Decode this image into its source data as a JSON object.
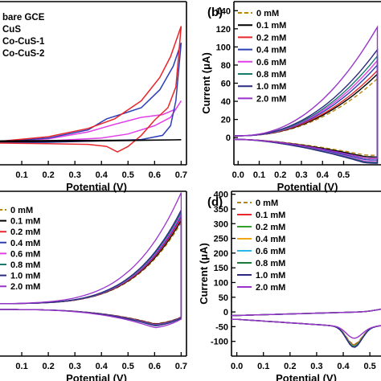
{
  "chart_data": [
    {
      "type": "line",
      "panel": "a",
      "xlabel": "Potential (V)",
      "ylabel": "",
      "x_ticks": [
        0.1,
        0.2,
        0.3,
        0.4,
        0.5,
        0.6,
        0.7
      ],
      "xlim": [
        0.0,
        0.72
      ],
      "ylim": [
        0,
        1
      ],
      "legend_position": "top-left",
      "series": [
        {
          "name": "bare GCE",
          "color": "#000000",
          "upper": [
            [
              -0.02,
              0.01
            ],
            [
              0.2,
              0.012
            ],
            [
              0.4,
              0.014
            ],
            [
              0.6,
              0.016
            ],
            [
              0.7,
              0.018
            ]
          ],
          "lower": [
            [
              0.7,
              0.018
            ],
            [
              0.5,
              0.012
            ],
            [
              0.3,
              0.008
            ],
            [
              0.1,
              0.005
            ],
            [
              -0.02,
              0.004
            ]
          ]
        },
        {
          "name": "CuS",
          "color": "#e8262b",
          "upper": [
            [
              -0.02,
              0.0
            ],
            [
              0.2,
              0.04
            ],
            [
              0.35,
              0.1
            ],
            [
              0.45,
              0.17
            ],
            [
              0.55,
              0.3
            ],
            [
              0.62,
              0.47
            ],
            [
              0.66,
              0.62
            ],
            [
              0.7,
              0.84
            ]
          ],
          "lower": [
            [
              0.7,
              0.84
            ],
            [
              0.68,
              0.4
            ],
            [
              0.65,
              0.25
            ],
            [
              0.6,
              0.16
            ],
            [
              0.55,
              0.05
            ],
            [
              0.5,
              -0.03
            ],
            [
              0.46,
              -0.07
            ],
            [
              0.42,
              -0.03
            ],
            [
              0.35,
              -0.015
            ],
            [
              0.2,
              -0.01
            ],
            [
              -0.02,
              -0.005
            ]
          ]
        },
        {
          "name": "Co-CuS-1",
          "color": "#2d3fb5",
          "upper": [
            [
              -0.02,
              0.0
            ],
            [
              0.2,
              0.03
            ],
            [
              0.35,
              0.09
            ],
            [
              0.42,
              0.17
            ],
            [
              0.47,
              0.2
            ],
            [
              0.55,
              0.25
            ],
            [
              0.62,
              0.38
            ],
            [
              0.67,
              0.55
            ],
            [
              0.7,
              0.72
            ]
          ],
          "lower": [
            [
              0.7,
              0.72
            ],
            [
              0.68,
              0.3
            ],
            [
              0.66,
              0.12
            ],
            [
              0.63,
              0.05
            ],
            [
              0.55,
              0.02
            ],
            [
              0.4,
              0.01
            ],
            [
              0.2,
              0.0
            ],
            [
              -0.02,
              -0.005
            ]
          ]
        },
        {
          "name": "Co-CuS-2",
          "color": "#e040e8",
          "upper": [
            [
              -0.02,
              0.0
            ],
            [
              0.2,
              0.025
            ],
            [
              0.35,
              0.075
            ],
            [
              0.45,
              0.13
            ],
            [
              0.55,
              0.18
            ],
            [
              0.63,
              0.2
            ],
            [
              0.68,
              0.24
            ],
            [
              0.7,
              0.3
            ]
          ],
          "lower": [
            [
              0.7,
              0.3
            ],
            [
              0.66,
              0.18
            ],
            [
              0.6,
              0.12
            ],
            [
              0.5,
              0.06
            ],
            [
              0.4,
              0.03
            ],
            [
              0.2,
              0.01
            ],
            [
              -0.02,
              -0.005
            ]
          ]
        }
      ]
    },
    {
      "type": "line",
      "panel": "b",
      "xlabel": "Potential (V)",
      "ylabel": "Current (μA)",
      "x_ticks": [
        0.0,
        0.1,
        0.2,
        0.3,
        0.4,
        0.5
      ],
      "y_ticks": [
        0,
        20,
        40,
        60,
        80,
        100,
        120,
        140
      ],
      "xlim": [
        -0.02,
        0.7
      ],
      "ylim": [
        -30,
        150
      ],
      "legend_position": "top-left",
      "series": [
        {
          "name": "0 mM",
          "color": "#b8860b",
          "dash": true,
          "upper_end": 65,
          "lower_min": -20
        },
        {
          "name": "0.1 mM",
          "color": "#000000",
          "upper_end": 70,
          "lower_min": -22
        },
        {
          "name": "0.2 mM",
          "color": "#e8262b",
          "upper_end": 74,
          "lower_min": -24
        },
        {
          "name": "0.4 mM",
          "color": "#2d3fb5",
          "upper_end": 80,
          "lower_min": -26
        },
        {
          "name": "0.6 mM",
          "color": "#e040e8",
          "upper_end": 85,
          "lower_min": -28
        },
        {
          "name": "0.8 mM",
          "color": "#1a7a6d",
          "upper_end": 90,
          "lower_min": -29
        },
        {
          "name": "1.0 mM",
          "color": "#2a2a80",
          "upper_end": 97,
          "lower_min": -30
        },
        {
          "name": "2.0 mM",
          "color": "#9933cc",
          "upper_end": 122,
          "lower_min": -24
        }
      ]
    },
    {
      "type": "line",
      "panel": "c",
      "xlabel": "Potential (V)",
      "ylabel": "",
      "x_ticks": [
        0.1,
        0.2,
        0.3,
        0.4,
        0.5,
        0.6,
        0.7
      ],
      "xlim": [
        0.0,
        0.72
      ],
      "ylim": [
        0,
        1
      ],
      "legend_position": "top-left",
      "series": [
        {
          "name": "0 mM",
          "color": "#b8860b",
          "dash": true,
          "scale": 0.78
        },
        {
          "name": "0.1 mM",
          "color": "#000000",
          "scale": 0.8
        },
        {
          "name": "0.2 mM",
          "color": "#e8262b",
          "scale": 0.82
        },
        {
          "name": "0.4 mM",
          "color": "#2d3fb5",
          "scale": 0.84
        },
        {
          "name": "0.6 mM",
          "color": "#e040e8",
          "scale": 0.86
        },
        {
          "name": "0.8 mM",
          "color": "#1a7a6d",
          "scale": 0.88
        },
        {
          "name": "1.0 mM",
          "color": "#2a2a80",
          "scale": 0.9
        },
        {
          "name": "2.0 mM",
          "color": "#9933cc",
          "scale": 1.0
        }
      ]
    },
    {
      "type": "line",
      "panel": "d",
      "xlabel": "Potential (V)",
      "ylabel": "Current (μA)",
      "x_ticks": [
        0.0,
        0.1,
        0.2,
        0.3,
        0.4,
        0.5
      ],
      "y_ticks": [
        -100,
        -50,
        0,
        50,
        100,
        150,
        200,
        250,
        300,
        350,
        400
      ],
      "xlim": [
        -0.02,
        0.56
      ],
      "ylim": [
        -150,
        410
      ],
      "legend_position": "top-left",
      "series": [
        {
          "name": "0 mM",
          "color": "#b8860b",
          "dash": true,
          "cathodic_peak": -118
        },
        {
          "name": "0.1 mM",
          "color": "#e8262b",
          "cathodic_peak": -121
        },
        {
          "name": "0.2 mM",
          "color": "#33a02c",
          "cathodic_peak": -123
        },
        {
          "name": "0.4 mM",
          "color": "#f2a51a",
          "cathodic_peak": -125
        },
        {
          "name": "0.6 mM",
          "color": "#2db5e8",
          "cathodic_peak": -126
        },
        {
          "name": "0.8 mM",
          "color": "#1a7a3a",
          "cathodic_peak": -127
        },
        {
          "name": "1.0 mM",
          "color": "#2a2a80",
          "cathodic_peak": -129
        },
        {
          "name": "2.0 mM",
          "color": "#9933cc",
          "cathodic_peak": -98
        }
      ]
    }
  ],
  "panel_labels": {
    "b": "(b)",
    "d": "(d)"
  }
}
